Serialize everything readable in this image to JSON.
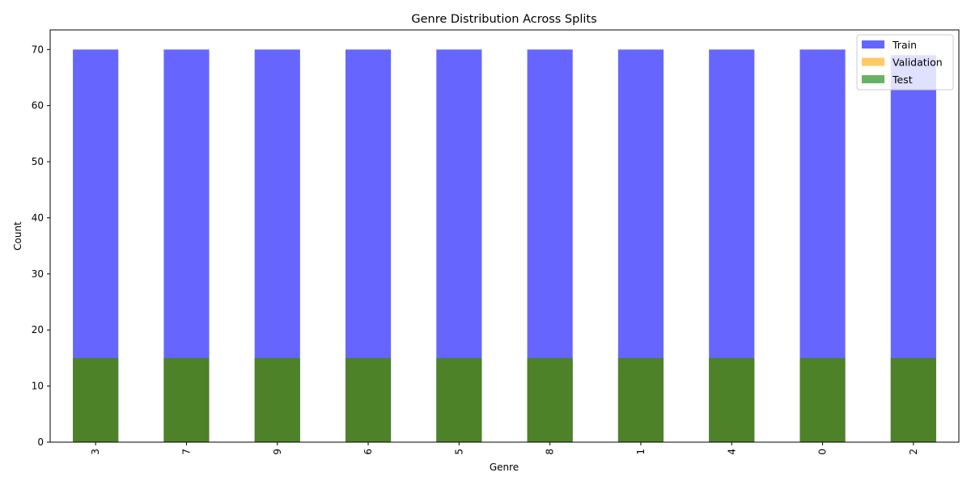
{
  "chart_data": {
    "type": "bar",
    "title": "Genre Distribution Across Splits",
    "xlabel": "Genre",
    "ylabel": "Count",
    "categories": [
      "3",
      "7",
      "9",
      "6",
      "5",
      "8",
      "1",
      "4",
      "0",
      "2"
    ],
    "series": [
      {
        "name": "Train",
        "values": [
          70,
          70,
          70,
          70,
          70,
          70,
          70,
          70,
          70,
          69
        ],
        "color": "#6666ff"
      },
      {
        "name": "Validation",
        "values": [
          15,
          15,
          15,
          15,
          15,
          15,
          15,
          15,
          15,
          15
        ],
        "color": "#ffc966"
      },
      {
        "name": "Test",
        "values": [
          15,
          15,
          15,
          15,
          15,
          15,
          15,
          15,
          15,
          15
        ],
        "color": "#66b266"
      }
    ],
    "overlap_color": "#4d8228",
    "ylim": [
      0,
      73.5
    ],
    "yticks": [
      "0",
      "10",
      "20",
      "30",
      "40",
      "50",
      "60",
      "70"
    ],
    "xtick_rotation": 90,
    "grid": false,
    "legend_position": "top-right"
  }
}
